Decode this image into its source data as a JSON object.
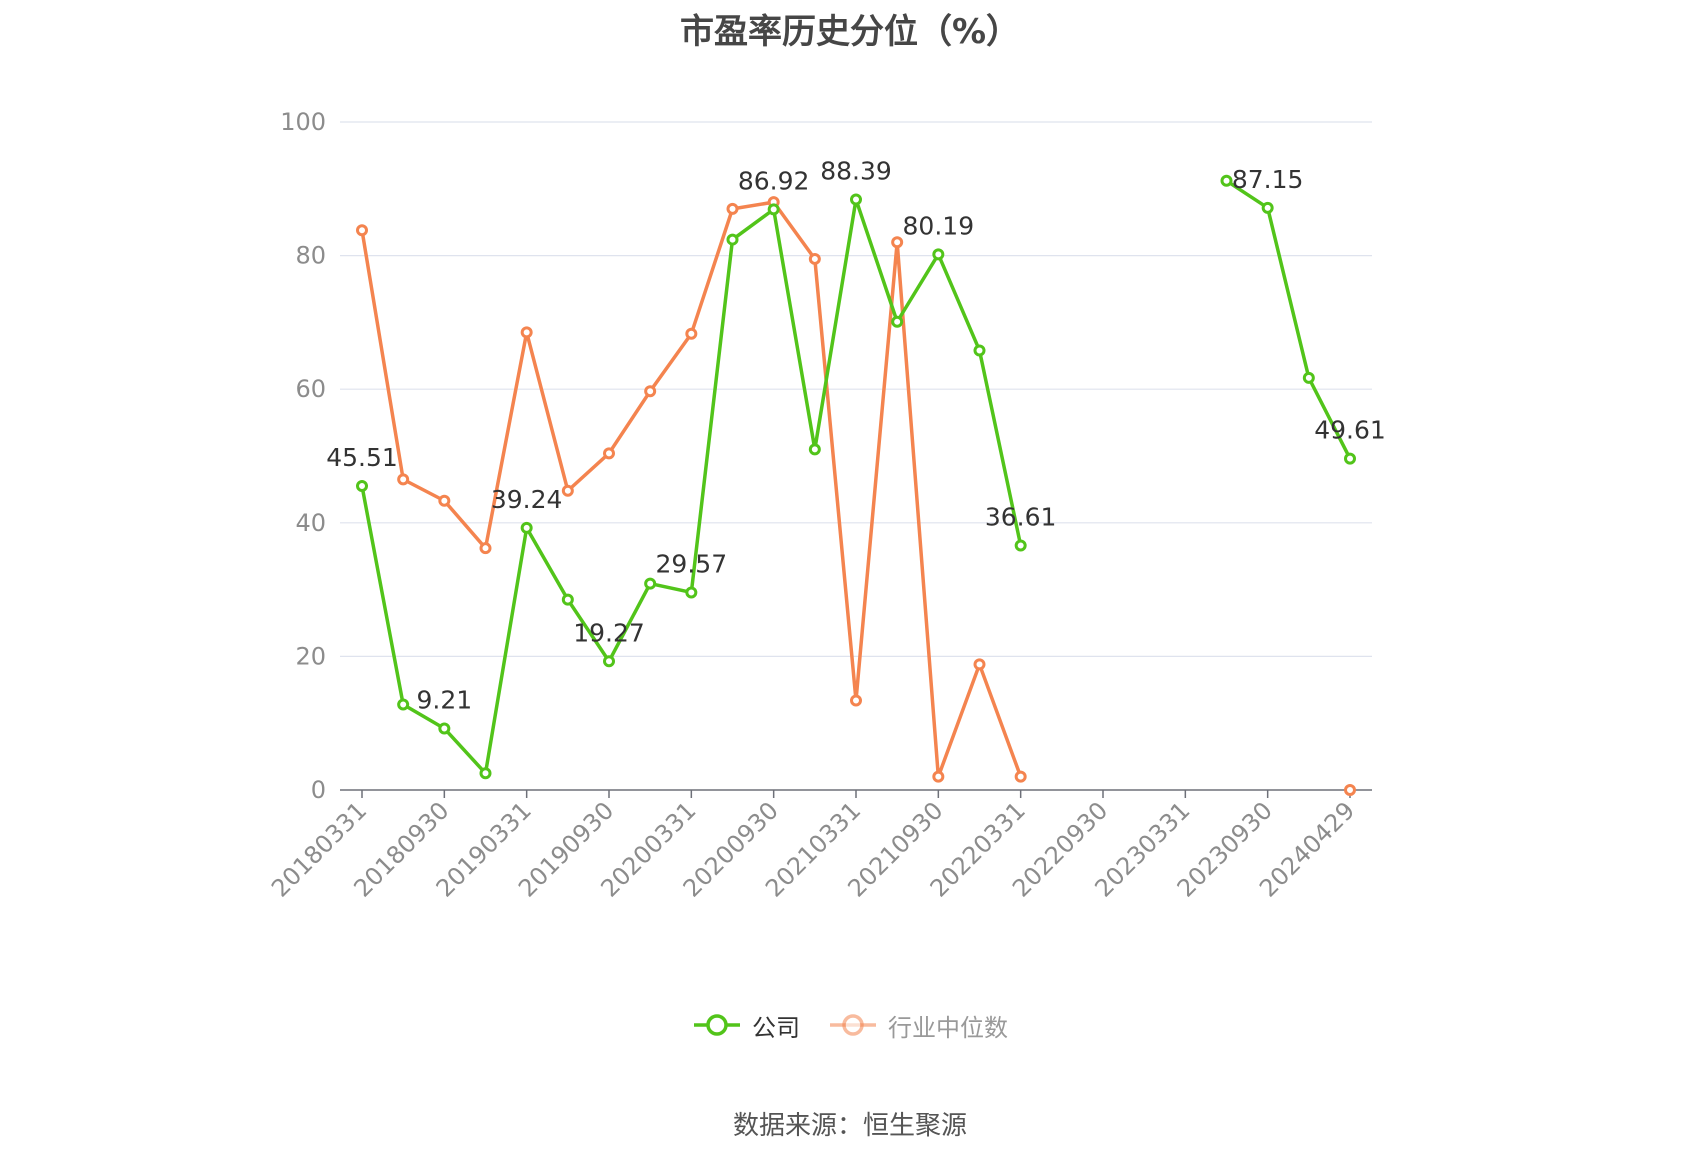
{
  "chart_data": {
    "type": "line",
    "title": "市盈率历史分位（%）",
    "xlabel": "",
    "ylabel": "",
    "ylim": [
      0,
      100
    ],
    "yticks": [
      0,
      20,
      40,
      60,
      80,
      100
    ],
    "x": [
      "20180331",
      "20180630",
      "20180930",
      "20181231",
      "20190331",
      "20190630",
      "20190930",
      "20191231",
      "20200331",
      "20200630",
      "20200930",
      "20201231",
      "20210331",
      "20210630",
      "20210930",
      "20211231",
      "20220331",
      "20220630",
      "20220930",
      "20221231",
      "20230331",
      "20230630",
      "20230930",
      "20231231",
      "20240429"
    ],
    "tick_labels": [
      "20180331",
      "20180930",
      "20190331",
      "20190930",
      "20200331",
      "20200930",
      "20210331",
      "20210930",
      "20220331",
      "20220930",
      "20230331",
      "20230930",
      "20240429"
    ],
    "series": [
      {
        "name": "公司",
        "color": "#52c41a",
        "values": [
          45.51,
          12.8,
          9.21,
          2.5,
          39.24,
          28.5,
          19.27,
          30.9,
          29.57,
          82.4,
          86.92,
          51.0,
          88.39,
          70.1,
          80.19,
          65.8,
          36.61,
          null,
          null,
          null,
          null,
          91.2,
          87.15,
          61.7,
          49.61
        ],
        "labels": [
          {
            "index": 0,
            "text": "45.51"
          },
          {
            "index": 2,
            "text": "9.21"
          },
          {
            "index": 4,
            "text": "39.24"
          },
          {
            "index": 6,
            "text": "19.27"
          },
          {
            "index": 8,
            "text": "29.57"
          },
          {
            "index": 10,
            "text": "86.92"
          },
          {
            "index": 12,
            "text": "88.39"
          },
          {
            "index": 14,
            "text": "80.19"
          },
          {
            "index": 16,
            "text": "36.61"
          },
          {
            "index": 22,
            "text": "87.15"
          },
          {
            "index": 24,
            "text": "49.61"
          }
        ]
      },
      {
        "name": "行业中位数",
        "color": "#f4844f",
        "values": [
          83.8,
          46.5,
          43.3,
          36.2,
          68.5,
          44.8,
          50.4,
          59.7,
          68.3,
          87.0,
          88.0,
          79.5,
          13.4,
          82.0,
          2.0,
          18.8,
          2.0,
          null,
          null,
          null,
          null,
          null,
          null,
          null,
          0
        ],
        "labels": []
      }
    ],
    "grid": true,
    "legend": "bottom-center"
  },
  "source_text": "数据来源：恒生聚源"
}
